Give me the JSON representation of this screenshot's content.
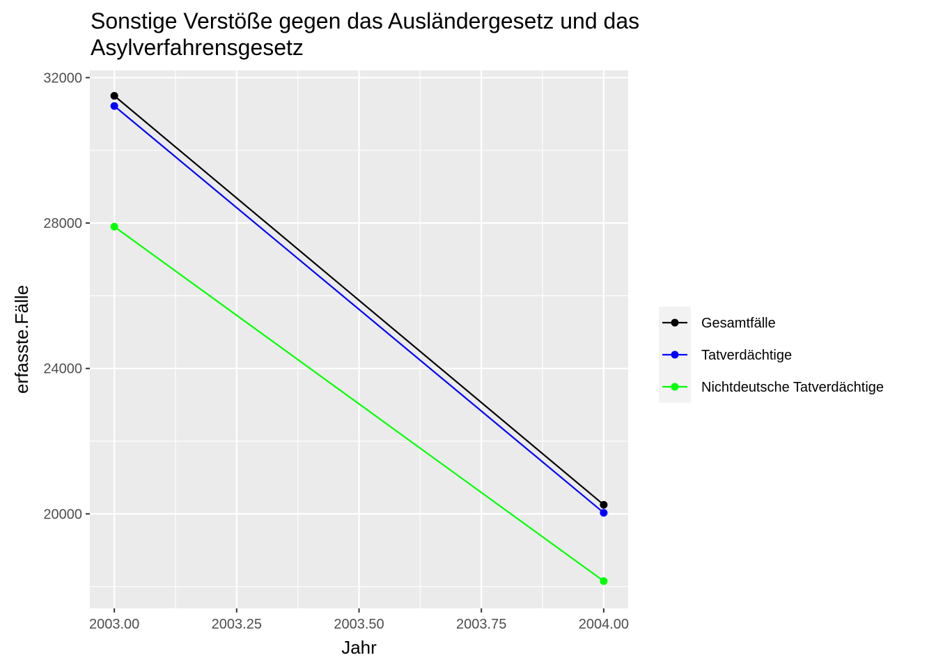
{
  "chart_data": {
    "type": "line",
    "title": "Sonstige Verstöße gegen das Ausländergesetz und das Asylverfahrensgesetz",
    "title_lines": [
      "Sonstige Verstöße gegen das Ausländergesetz und das",
      "Asylverfahrensgesetz"
    ],
    "xlabel": "Jahr",
    "ylabel": "erfasste.Fälle",
    "x": [
      2003,
      2004
    ],
    "xlim": [
      2002.95,
      2004.05
    ],
    "ylim": [
      17400,
      32200
    ],
    "x_ticks": [
      2003.0,
      2003.25,
      2003.5,
      2003.75,
      2004.0
    ],
    "x_tick_labels": [
      "2003.00",
      "2003.25",
      "2003.50",
      "2003.75",
      "2004.00"
    ],
    "y_ticks": [
      20000,
      24000,
      28000,
      32000
    ],
    "y_tick_labels": [
      "20000",
      "24000",
      "28000",
      "32000"
    ],
    "grid": true,
    "legend_position": "right",
    "series": [
      {
        "name": "Gesamtfälle",
        "color": "#000000",
        "values": [
          31500,
          20250
        ]
      },
      {
        "name": "Tatverdächtige",
        "color": "#0000ff",
        "values": [
          31220,
          20030
        ]
      },
      {
        "name": "Nichtdeutsche Tatverdächtige",
        "color": "#00ff00",
        "values": [
          27900,
          18150
        ]
      }
    ]
  },
  "colors": {
    "panel_background": "#ebebeb",
    "grid_major": "#ffffff",
    "legend_key_background": "#f2f2f2",
    "tick_text": "#4d4d4d"
  }
}
